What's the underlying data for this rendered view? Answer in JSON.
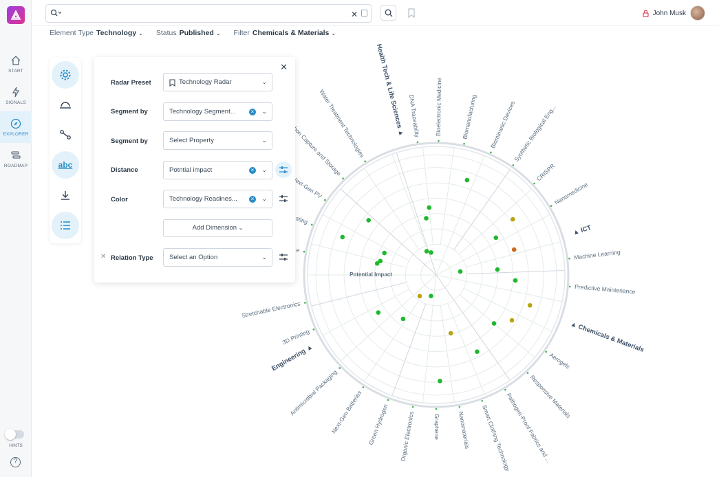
{
  "app": {
    "logo_letter": "A"
  },
  "nav": {
    "start": "START",
    "signals": "SIGNALS",
    "explorer": "EXPLORER",
    "roadmap": "ROADMAP",
    "hints": "HINTS",
    "help": "?"
  },
  "topbar": {
    "search_value": "",
    "user_name": "John Musk"
  },
  "filters": {
    "element_type_label": "Element Type",
    "element_type_value": "Technology",
    "status_label": "Status",
    "status_value": "Published",
    "filter_label": "Filter",
    "filter_value": "Chemicals & Materials"
  },
  "panel": {
    "radar_preset_label": "Radar Preset",
    "radar_preset_value": "Technology Radar",
    "segment_by_label": "Segment by",
    "segment_by_value": "Technology Segment...",
    "segment_by2_label": "Segment by",
    "segment_by2_value": "Select  Property",
    "distance_label": "Distance",
    "distance_value": "Potntial impact",
    "color_label": "Color",
    "color_value": "Technology Readines...",
    "add_dimension": "Add Dimension",
    "relation_type_label": "Relation Type",
    "relation_type_value": "Select an Option"
  },
  "radar": {
    "center_label": "Potential Impact",
    "segments": [
      "Health Tech & Life Sciences",
      "ICT",
      "Chemicals & Materials",
      "Engineering"
    ],
    "technologies": [
      "DNA Traceability",
      "Bioelectronic Medicine",
      "Biomanufacturing",
      "Biomimetic Devices",
      "Synthetic Biological Eng...",
      "CRISPR",
      "Nanomedicine",
      "Machine Learning",
      "Predictive Maintenance",
      "Aerogels",
      "Responsive Materials",
      "Pathogen-Proof Fabrics and ...",
      "Smart Clothing Technology",
      "Nanomaterials",
      "Graphene",
      "Organic Electronics",
      "Green Hydrogen",
      "Next-Gen Batteries",
      "Antimicrobial Packaging",
      "3D Printing",
      "Stretchable Electronics",
      "Water Treatment Technologies",
      "rbon Capture and Storage",
      "Next-Gen PV",
      "sting",
      "e"
    ]
  },
  "colors": {
    "accent": "#2a8cc6",
    "dot_green": "#1fb82e",
    "dot_olive": "#b8a412",
    "dot_orange": "#d0671a"
  }
}
